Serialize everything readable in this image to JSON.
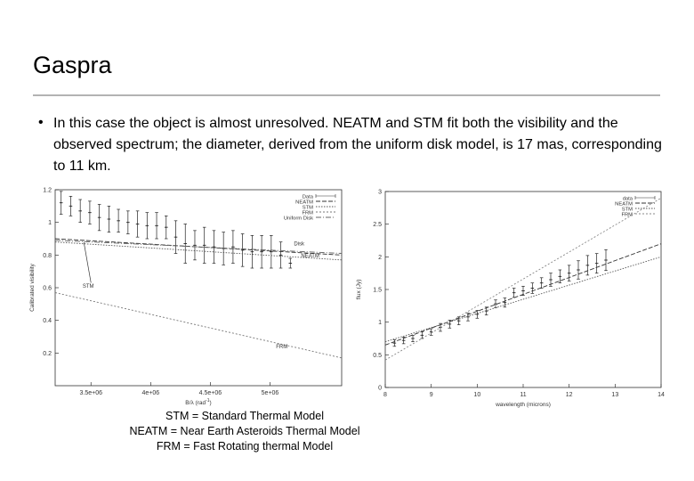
{
  "slide": {
    "title": "Gaspra",
    "bullet": "In this case the object is almost unresolved. NEATM and STM fit both the visibility and the observed spectrum; the diameter, derived from the uniform disk model, is 17 mas, corresponding to 11 km.",
    "caption_lines": [
      "STM = Standard Thermal Model",
      "NEATM = Near Earth Asteroids Thermal Model",
      "FRM = Fast Rotating thermal Model"
    ]
  },
  "chart_data": [
    {
      "type": "line",
      "ylabel": "Calibrated visibility",
      "xlabel": "B/λ (rad",
      "xlabel_sup": "-1",
      "xlabel_close": ")",
      "xlim": [
        3200000,
        5600000
      ],
      "ylim": [
        0,
        1.2
      ],
      "xticks": [
        3500000,
        4000000,
        4500000,
        5000000
      ],
      "xtick_labels": [
        "3.5e+06",
        "4e+06",
        "4.5e+06",
        "5e+06"
      ],
      "yticks": [
        0.2,
        0.4,
        0.6,
        0.8,
        1,
        1.2
      ],
      "ytick_labels": [
        "0.2",
        "0.4",
        "0.6",
        "0.8",
        "1",
        "1.2"
      ],
      "legend": [
        "Data",
        "NEATM",
        "STM",
        "FRM",
        "Uniform Disk"
      ],
      "annotations": [
        "Disk",
        "NEATM",
        "STM",
        "FRM"
      ],
      "series": [
        {
          "name": "Data",
          "x": [
            3250000,
            3330000,
            3410000,
            3490000,
            3570000,
            3650000,
            3730000,
            3810000,
            3890000,
            3970000,
            4050000,
            4130000,
            4210000,
            4290000,
            4370000,
            4450000,
            4530000,
            4610000,
            4690000,
            4770000,
            4850000,
            4930000,
            5010000,
            5090000,
            5170000
          ],
          "y": [
            1.12,
            1.1,
            1.07,
            1.06,
            1.03,
            1.02,
            1.01,
            1,
            0.99,
            0.98,
            0.98,
            0.97,
            0.91,
            0.87,
            0.86,
            0.86,
            0.85,
            0.84,
            0.85,
            0.83,
            0.82,
            0.82,
            0.82,
            0.8,
            0.75
          ],
          "err": [
            0.07,
            0.06,
            0.07,
            0.07,
            0.08,
            0.08,
            0.07,
            0.07,
            0.08,
            0.08,
            0.08,
            0.07,
            0.1,
            0.12,
            0.09,
            0.11,
            0.1,
            0.1,
            0.1,
            0.1,
            0.1,
            0.1,
            0.1,
            0.08,
            0.03
          ]
        },
        {
          "name": "NEATM",
          "x": [
            3200000,
            5600000
          ],
          "y": [
            0.9,
            0.8
          ]
        },
        {
          "name": "STM",
          "x": [
            3200000,
            5600000
          ],
          "y": [
            0.88,
            0.77
          ]
        },
        {
          "name": "FRM",
          "x": [
            3200000,
            5600000
          ],
          "y": [
            0.57,
            0.17
          ]
        },
        {
          "name": "Uniform Disk",
          "x": [
            3200000,
            5600000
          ],
          "y": [
            0.89,
            0.81
          ]
        }
      ]
    },
    {
      "type": "line",
      "ylabel": "flux (Jy)",
      "xlabel": "wavelength (microns)",
      "xlim": [
        8,
        14
      ],
      "ylim": [
        0,
        3
      ],
      "xticks": [
        8,
        9,
        10,
        11,
        12,
        13,
        14
      ],
      "yticks": [
        0,
        0.5,
        1,
        1.5,
        2,
        2.5,
        3
      ],
      "ytick_labels": [
        "0",
        "0.5",
        "1",
        "1.5",
        "2",
        "2.5",
        "3"
      ],
      "legend": [
        "data",
        "NEATM",
        "STM",
        "FRM"
      ],
      "series": [
        {
          "name": "data",
          "x": [
            8.2,
            8.4,
            8.6,
            8.8,
            9,
            9.2,
            9.4,
            9.6,
            9.8,
            10,
            10.2,
            10.4,
            10.6,
            10.8,
            11,
            11.2,
            11.4,
            11.6,
            11.8,
            12,
            12.2,
            12.4,
            12.6,
            12.8
          ],
          "y": [
            0.68,
            0.72,
            0.75,
            0.8,
            0.85,
            0.92,
            0.97,
            1.02,
            1.08,
            1.12,
            1.17,
            1.28,
            1.3,
            1.45,
            1.48,
            1.52,
            1.6,
            1.65,
            1.7,
            1.75,
            1.8,
            1.87,
            1.9,
            1.95
          ],
          "err": [
            0.05,
            0.05,
            0.05,
            0.05,
            0.05,
            0.06,
            0.06,
            0.06,
            0.06,
            0.06,
            0.06,
            0.06,
            0.07,
            0.07,
            0.07,
            0.08,
            0.08,
            0.1,
            0.1,
            0.12,
            0.14,
            0.15,
            0.15,
            0.16
          ]
        },
        {
          "name": "NEATM",
          "x": [
            8,
            14
          ],
          "y": [
            0.65,
            2.2
          ]
        },
        {
          "name": "STM",
          "x": [
            8,
            14
          ],
          "y": [
            0.7,
            2.0
          ]
        },
        {
          "name": "FRM",
          "x": [
            8,
            14
          ],
          "y": [
            0.42,
            2.9
          ]
        }
      ]
    }
  ]
}
